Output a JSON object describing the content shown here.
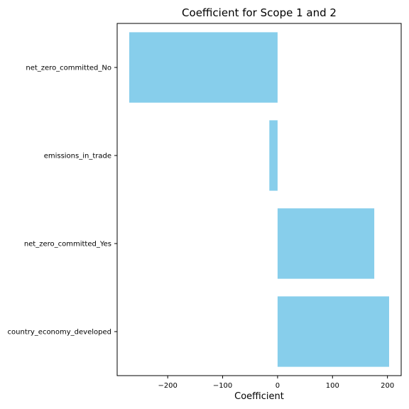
{
  "chart_data": {
    "type": "bar",
    "orientation": "horizontal",
    "title": "Coefficient for Scope 1 and 2",
    "xlabel": "Coefficient",
    "ylabel": "",
    "categories": [
      "net_zero_committed_No",
      "emissions_in_trade",
      "net_zero_committed_Yes",
      "country_economy_developed"
    ],
    "values": [
      -270,
      -15,
      176,
      203
    ],
    "xlim": [
      -292,
      225
    ],
    "xticks": [
      -200,
      -100,
      0,
      100,
      200
    ],
    "xtick_labels": [
      "−200",
      "−100",
      "0",
      "100",
      "200"
    ],
    "bar_color": "#87ceeb",
    "grid": false,
    "legend": "none"
  }
}
